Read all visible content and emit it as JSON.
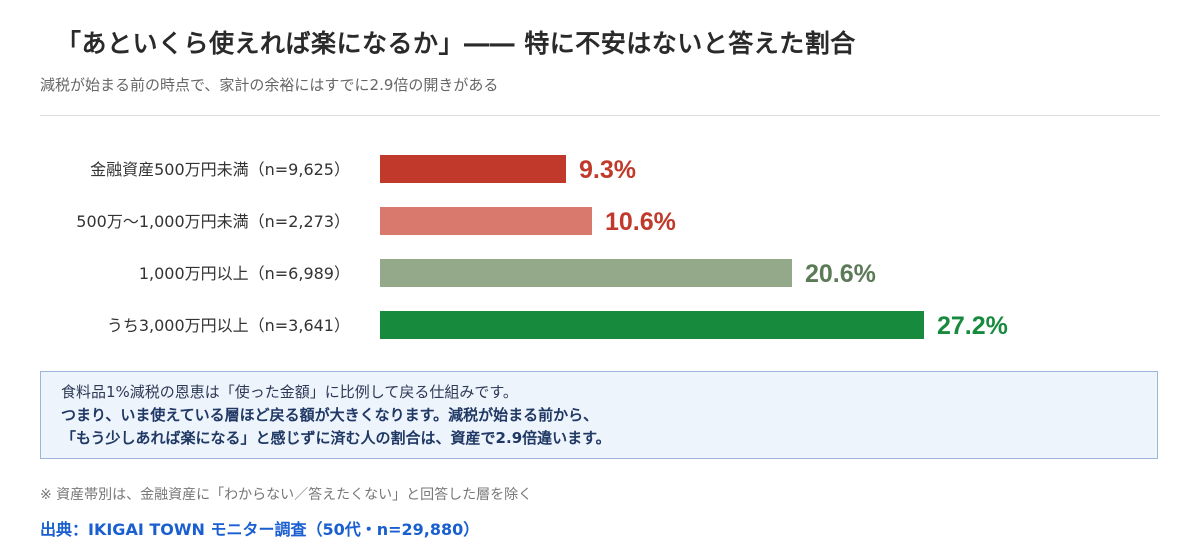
{
  "header": {
    "title": "「あといくら使えれば楽になるか」―― 特に不安はないと答えた割合",
    "subtitle": "減税が始まる前の時点で、家計の余裕にはすでに2.9倍の開きがある"
  },
  "chart_data": {
    "type": "bar",
    "orientation": "horizontal",
    "categories": [
      "金融資産500万円未満（n=9,625）",
      "500万〜1,000万円未満（n=2,273）",
      "1,000万円以上（n=6,989）",
      "うち3,000万円以上（n=3,641）"
    ],
    "values": [
      9.3,
      10.6,
      20.6,
      27.2
    ],
    "value_labels": [
      "9.3%",
      "10.6%",
      "20.6%",
      "27.2%"
    ],
    "bar_colors": [
      "#c0392b",
      "#d9786c",
      "#93a98a",
      "#178a3e"
    ],
    "label_colors": [
      "#c0392b",
      "#c0392b",
      "#5b7a56",
      "#178a3e"
    ],
    "unit": "%",
    "xlim": [
      0,
      30
    ],
    "grid": false,
    "legend": "none"
  },
  "note": {
    "line1": "食料品1%減税の恩恵は「使った金額」に比例して戻る仕組みです。",
    "line2": "つまり、いま使えている層ほど戻る額が大きくなります。減税が始まる前から、",
    "line3": "「もう少しあれば楽になる」と感じずに済む人の割合は、資産で2.9倍違います。"
  },
  "footnote": "※ 資産帯別は、金融資産に「わからない／答えたくない」と回答した層を除く",
  "source": "出典：IKIGAI TOWN モニター調査（50代・n=29,880）"
}
